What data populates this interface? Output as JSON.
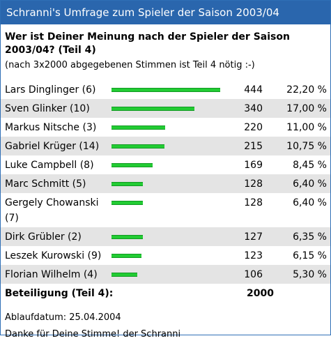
{
  "title": "Schranni's Umfrage zum Spieler der Saison 2003/04",
  "question": "Wer ist Deiner Meinung nach der Spieler der Saison 2003/04? (Teil 4)",
  "note": "(nach 3x2000 abgegebenen Stimmen ist Teil 4 nötig :-)",
  "colors": {
    "titlebar": "#2a66ad",
    "bar": "#22cc33",
    "row_alt": "#e4e4e4"
  },
  "candidates": [
    {
      "name": "Lars Dinglinger (6)",
      "votes": "444",
      "percent": "22,20 %",
      "share": 0.222
    },
    {
      "name": "Sven Glinker (10)",
      "votes": "340",
      "percent": "17,00 %",
      "share": 0.17
    },
    {
      "name": "Markus Nitsche (3)",
      "votes": "220",
      "percent": "11,00 %",
      "share": 0.11
    },
    {
      "name": "Gabriel Krüger (14)",
      "votes": "215",
      "percent": "10,75 %",
      "share": 0.1075
    },
    {
      "name": "Luke Campbell (8)",
      "votes": "169",
      "percent": "8,45 %",
      "share": 0.0845
    },
    {
      "name": "Marc Schmitt (5)",
      "votes": "128",
      "percent": "6,40 %",
      "share": 0.064
    },
    {
      "name": "Gergely Chowanski (7)",
      "votes": "128",
      "percent": "6,40 %",
      "share": 0.064
    },
    {
      "name": "Dirk Grübler (2)",
      "votes": "127",
      "percent": "6,35 %",
      "share": 0.0635
    },
    {
      "name": "Leszek Kurowski (9)",
      "votes": "123",
      "percent": "6,15 %",
      "share": 0.0615
    },
    {
      "name": "Florian Wilhelm (4)",
      "votes": "106",
      "percent": "5,30 %",
      "share": 0.053
    }
  ],
  "total": {
    "label": "Beteiligung (Teil 4):",
    "value": "2000"
  },
  "footer": {
    "deadline": "Ablaufdatum: 25.04.2004",
    "thanks": "Danke für Deine Stimme! der Schranni"
  }
}
